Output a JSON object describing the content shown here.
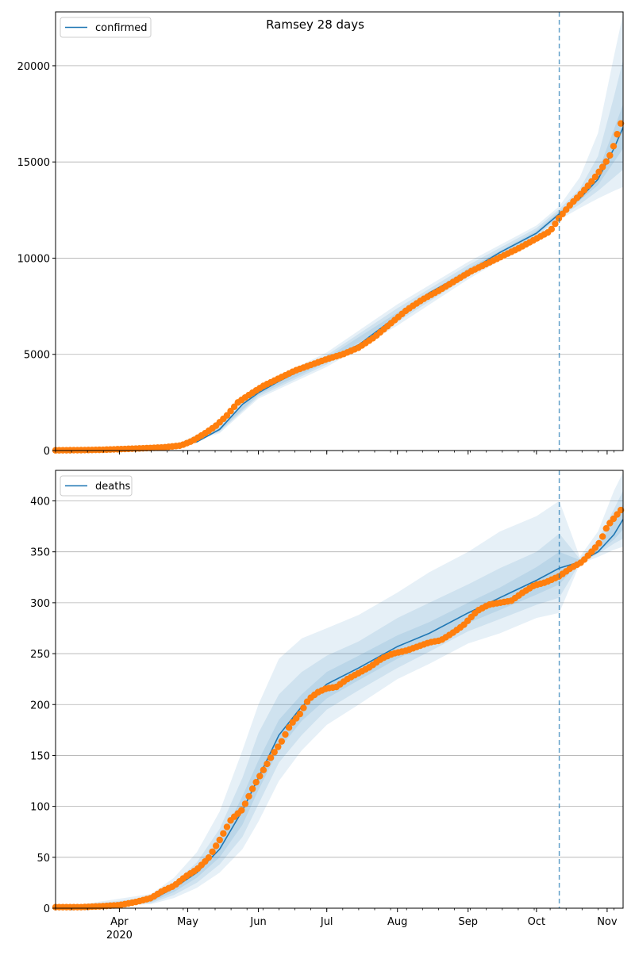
{
  "figure": {
    "title": "Ramsey 28 days"
  },
  "colors": {
    "line": "#1f77b4",
    "points": "#ff7f0e",
    "band": "#1f77b4",
    "grid": "#b0b0b0",
    "vline": "#1f77b4"
  },
  "x_axis": {
    "months": [
      {
        "label": "Apr",
        "date": "2020-04-01"
      },
      {
        "label": "May",
        "date": "2020-05-01"
      },
      {
        "label": "Jun",
        "date": "2020-06-01"
      },
      {
        "label": "Jul",
        "date": "2020-07-01"
      },
      {
        "label": "Aug",
        "date": "2020-08-01"
      },
      {
        "label": "Sep",
        "date": "2020-09-01"
      },
      {
        "label": "Oct",
        "date": "2020-10-01"
      },
      {
        "label": "Nov",
        "date": "2020-11-01"
      }
    ],
    "year_label": "2020",
    "range": [
      "2020-03-04",
      "2020-11-08"
    ],
    "forecast_start": "2020-10-11"
  },
  "chart_data": [
    {
      "type": "line",
      "legend": "confirmed",
      "legend_position": "top-left",
      "grid": "horizontal",
      "ylim": [
        0,
        22800
      ],
      "yticks": [
        0,
        5000,
        10000,
        15000,
        20000
      ],
      "fit": {
        "x": [
          "2020-03-04",
          "2020-04-01",
          "2020-04-15",
          "2020-04-25",
          "2020-05-05",
          "2020-05-15",
          "2020-05-25",
          "2020-06-01",
          "2020-06-10",
          "2020-06-20",
          "2020-07-01",
          "2020-07-15",
          "2020-08-01",
          "2020-08-15",
          "2020-09-01",
          "2020-09-15",
          "2020-10-01",
          "2020-10-11",
          "2020-10-20",
          "2020-10-28",
          "2020-11-04",
          "2020-11-08"
        ],
        "y": [
          0,
          50,
          120,
          200,
          450,
          1100,
          2400,
          3000,
          3600,
          4200,
          4700,
          5500,
          7000,
          8200,
          9300,
          10300,
          11300,
          12300,
          13100,
          14100,
          15700,
          16800
        ]
      },
      "bands": [
        {
          "x": [
            "2020-03-04",
            "2020-04-25",
            "2020-05-15",
            "2020-06-01",
            "2020-07-01",
            "2020-08-01",
            "2020-09-01",
            "2020-10-01",
            "2020-10-11",
            "2020-10-20",
            "2020-10-28",
            "2020-11-04",
            "2020-11-08"
          ],
          "lower": [
            0,
            150,
            900,
            2700,
            4350,
            6500,
            8900,
            11000,
            12000,
            12600,
            13100,
            13500,
            13700
          ],
          "upper": [
            0,
            260,
            1400,
            3350,
            5100,
            7600,
            9800,
            11700,
            12700,
            14200,
            16500,
            20500,
            22700
          ]
        },
        {
          "x": [
            "2020-03-04",
            "2020-04-25",
            "2020-05-15",
            "2020-06-01",
            "2020-07-01",
            "2020-08-01",
            "2020-09-01",
            "2020-10-01",
            "2020-10-11",
            "2020-10-20",
            "2020-10-28",
            "2020-11-04",
            "2020-11-08"
          ],
          "lower": [
            0,
            165,
            970,
            2800,
            4480,
            6680,
            9050,
            11120,
            12100,
            12800,
            13500,
            14200,
            14600
          ],
          "upper": [
            0,
            240,
            1300,
            3250,
            4960,
            7400,
            9640,
            11560,
            12550,
            13600,
            15300,
            18400,
            20300
          ]
        },
        {
          "x": [
            "2020-03-04",
            "2020-04-25",
            "2020-05-15",
            "2020-06-01",
            "2020-07-01",
            "2020-08-01",
            "2020-09-01",
            "2020-10-01",
            "2020-10-11",
            "2020-10-20",
            "2020-10-28",
            "2020-11-04",
            "2020-11-08"
          ],
          "lower": [
            0,
            180,
            1030,
            2900,
            4590,
            6840,
            9170,
            11220,
            12180,
            13000,
            13800,
            15000,
            15700
          ],
          "upper": [
            0,
            225,
            1200,
            3120,
            4830,
            7180,
            9470,
            11420,
            12430,
            13250,
            14500,
            16700,
            18000
          ]
        }
      ],
      "observed": {
        "x": [
          "2020-03-04",
          "2020-03-15",
          "2020-03-25",
          "2020-04-01",
          "2020-04-10",
          "2020-04-20",
          "2020-04-28",
          "2020-05-03",
          "2020-05-08",
          "2020-05-13",
          "2020-05-18",
          "2020-05-23",
          "2020-05-28",
          "2020-06-03",
          "2020-06-10",
          "2020-06-17",
          "2020-06-24",
          "2020-07-01",
          "2020-07-08",
          "2020-07-15",
          "2020-07-22",
          "2020-07-29",
          "2020-08-05",
          "2020-08-12",
          "2020-08-19",
          "2020-08-26",
          "2020-09-02",
          "2020-09-09",
          "2020-09-16",
          "2020-09-23",
          "2020-09-30",
          "2020-10-07",
          "2020-10-11",
          "2020-10-16",
          "2020-10-21",
          "2020-10-26",
          "2020-10-31",
          "2020-11-03",
          "2020-11-05",
          "2020-11-07"
        ],
        "y": [
          10,
          20,
          40,
          70,
          110,
          160,
          260,
          500,
          850,
          1250,
          1800,
          2500,
          2900,
          3350,
          3750,
          4150,
          4450,
          4750,
          5000,
          5350,
          5900,
          6600,
          7300,
          7850,
          8300,
          8800,
          9300,
          9700,
          10100,
          10500,
          10950,
          11400,
          12100,
          12800,
          13400,
          14100,
          14900,
          15500,
          16300,
          17000
        ]
      }
    },
    {
      "type": "line",
      "legend": "deaths",
      "legend_position": "top-left",
      "grid": "horizontal",
      "ylim": [
        0,
        430
      ],
      "yticks": [
        0,
        50,
        100,
        150,
        200,
        250,
        300,
        350,
        400
      ],
      "fit": {
        "x": [
          "2020-03-04",
          "2020-04-01",
          "2020-04-15",
          "2020-04-25",
          "2020-05-05",
          "2020-05-15",
          "2020-05-25",
          "2020-06-01",
          "2020-06-10",
          "2020-06-20",
          "2020-07-01",
          "2020-07-15",
          "2020-08-01",
          "2020-08-15",
          "2020-09-01",
          "2020-09-15",
          "2020-10-01",
          "2020-10-11",
          "2020-10-20",
          "2020-10-28",
          "2020-11-04",
          "2020-11-08"
        ],
        "y": [
          0,
          3,
          8,
          20,
          35,
          58,
          96,
          128,
          170,
          198,
          220,
          236,
          257,
          270,
          290,
          305,
          322,
          334,
          340,
          350,
          367,
          382
        ]
      },
      "bands": [
        {
          "x": [
            "2020-03-04",
            "2020-04-15",
            "2020-04-25",
            "2020-05-05",
            "2020-05-15",
            "2020-05-25",
            "2020-06-01",
            "2020-06-10",
            "2020-06-20",
            "2020-07-01",
            "2020-07-15",
            "2020-08-01",
            "2020-08-15",
            "2020-09-01",
            "2020-09-15",
            "2020-10-01",
            "2020-10-11",
            "2020-10-20",
            "2020-10-28",
            "2020-11-04",
            "2020-11-08"
          ],
          "lower": [
            0,
            4,
            10,
            20,
            35,
            58,
            85,
            125,
            155,
            180,
            200,
            225,
            240,
            260,
            270,
            285,
            290,
            338,
            345,
            352,
            355
          ],
          "upper": [
            0,
            14,
            30,
            55,
            95,
            155,
            200,
            245,
            265,
            275,
            288,
            310,
            330,
            350,
            370,
            385,
            400,
            345,
            370,
            410,
            428
          ]
        },
        {
          "x": [
            "2020-03-04",
            "2020-04-15",
            "2020-04-25",
            "2020-05-05",
            "2020-05-15",
            "2020-05-25",
            "2020-06-01",
            "2020-06-10",
            "2020-06-20",
            "2020-07-01",
            "2020-07-15",
            "2020-08-01",
            "2020-08-15",
            "2020-09-01",
            "2020-09-15",
            "2020-10-01",
            "2020-10-11",
            "2020-10-20",
            "2020-10-28",
            "2020-11-04",
            "2020-11-08"
          ],
          "lower": [
            0,
            5,
            13,
            25,
            43,
            70,
            102,
            143,
            170,
            195,
            214,
            236,
            252,
            272,
            284,
            298,
            305,
            339,
            348,
            358,
            363
          ],
          "upper": [
            0,
            11,
            25,
            45,
            78,
            128,
            172,
            210,
            232,
            248,
            262,
            285,
            300,
            318,
            334,
            350,
            368,
            343,
            362,
            392,
            410
          ]
        },
        {
          "x": [
            "2020-03-04",
            "2020-04-15",
            "2020-04-25",
            "2020-05-05",
            "2020-05-15",
            "2020-05-25",
            "2020-06-01",
            "2020-06-10",
            "2020-06-20",
            "2020-07-01",
            "2020-07-15",
            "2020-08-01",
            "2020-08-15",
            "2020-09-01",
            "2020-09-15",
            "2020-10-01",
            "2020-10-11",
            "2020-10-20",
            "2020-10-28",
            "2020-11-04",
            "2020-11-08"
          ],
          "lower": [
            0,
            6,
            16,
            30,
            50,
            82,
            116,
            156,
            184,
            206,
            224,
            245,
            260,
            280,
            293,
            308,
            318,
            340,
            350,
            362,
            372
          ],
          "upper": [
            0,
            9,
            22,
            40,
            66,
            110,
            145,
            185,
            210,
            232,
            248,
            268,
            281,
            300,
            315,
            335,
            350,
            342,
            356,
            380,
            397
          ]
        }
      ],
      "observed": {
        "x": [
          "2020-03-04",
          "2020-03-15",
          "2020-03-25",
          "2020-04-01",
          "2020-04-08",
          "2020-04-15",
          "2020-04-20",
          "2020-04-25",
          "2020-04-30",
          "2020-05-05",
          "2020-05-10",
          "2020-05-15",
          "2020-05-20",
          "2020-05-25",
          "2020-05-30",
          "2020-06-03",
          "2020-06-07",
          "2020-06-11",
          "2020-06-15",
          "2020-06-19",
          "2020-06-23",
          "2020-06-27",
          "2020-07-01",
          "2020-07-05",
          "2020-07-10",
          "2020-07-15",
          "2020-07-20",
          "2020-07-25",
          "2020-07-30",
          "2020-08-05",
          "2020-08-10",
          "2020-08-15",
          "2020-08-20",
          "2020-08-25",
          "2020-08-30",
          "2020-09-05",
          "2020-09-10",
          "2020-09-15",
          "2020-09-20",
          "2020-09-25",
          "2020-09-30",
          "2020-10-05",
          "2020-10-11",
          "2020-10-16",
          "2020-10-21",
          "2020-10-26",
          "2020-10-29",
          "2020-11-01",
          "2020-11-04",
          "2020-11-07"
        ],
        "y": [
          1,
          1,
          2,
          3,
          6,
          10,
          17,
          22,
          31,
          38,
          49,
          67,
          87,
          97,
          120,
          135,
          150,
          163,
          180,
          190,
          205,
          212,
          216,
          217,
          225,
          231,
          237,
          245,
          250,
          253,
          257,
          261,
          263,
          270,
          278,
          292,
          298,
          300,
          302,
          310,
          317,
          320,
          326,
          334,
          340,
          352,
          360,
          375,
          383,
          391
        ]
      }
    }
  ]
}
